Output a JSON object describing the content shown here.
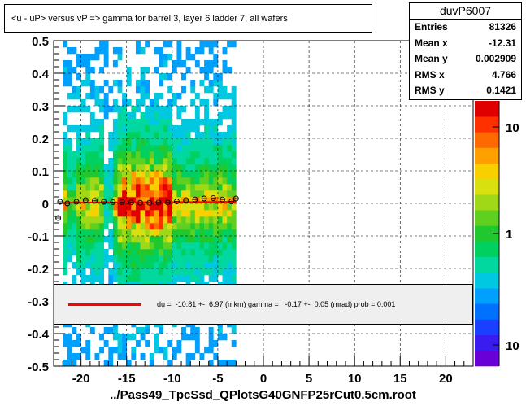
{
  "title": "<u - uP>       versus   vP =>  gamma for barrel 3, layer 6 ladder 7, all wafers",
  "x_title": "../Pass49_TpcSsd_QPlotsG40GNFP25rCut0.5cm.root",
  "stats": {
    "name": "duvP6007",
    "rows": [
      {
        "label": "Entries",
        "value": "81326"
      },
      {
        "label": "Mean x",
        "value": "-12.31"
      },
      {
        "label": "Mean y",
        "value": "0.002909"
      },
      {
        "label": "RMS x",
        "value": "4.766"
      },
      {
        "label": "RMS y",
        "value": "0.1421"
      }
    ]
  },
  "fit": {
    "text": "du =  -10.81 +-  6.97 (mkm) gamma =   -0.17 +-  0.05 (mrad) prob = 0.001",
    "line_color": "#ff0000"
  },
  "chart_data": {
    "type": "heatmap",
    "xlim": [
      -23,
      23
    ],
    "ylim": [
      -0.5,
      0.5
    ],
    "x_ticks": [
      -20,
      -15,
      -10,
      -5,
      0,
      5,
      10,
      15,
      20
    ],
    "y_ticks": [
      -0.5,
      -0.4,
      -0.3,
      -0.2,
      -0.1,
      0,
      0.1,
      0.2,
      0.3,
      0.4,
      0.5
    ],
    "x_tick_labels": [
      "-20",
      "-15",
      "-10",
      "-5",
      "0",
      "5",
      "10",
      "15",
      "20"
    ],
    "y_tick_labels": [
      "-0.5",
      "-0.4",
      "-0.3",
      "-0.2",
      "-0.1",
      "0",
      "0.1",
      "0.2",
      "0.3",
      "0.4",
      "0.5"
    ],
    "grid": true,
    "log_z": true,
    "z_tick_labels": [
      "10",
      "1",
      "10"
    ],
    "data_x_range": [
      -22,
      -3
    ],
    "profile_points": {
      "x": [
        -22.5,
        -22.3,
        -21.5,
        -20.5,
        -19.5,
        -18.5,
        -17.5,
        -16.5,
        -15.5,
        -14.5,
        -13.5,
        -12.5,
        -11.5,
        -10.5,
        -9.5,
        -8.5,
        -7.5,
        -6.5,
        -5.5,
        -4.5,
        -3.5,
        -3.0
      ],
      "y": [
        -0.045,
        0.005,
        0.0,
        0.005,
        0.01,
        0.008,
        0.005,
        0.004,
        0.004,
        0.003,
        0.002,
        0.002,
        0.003,
        0.003,
        0.006,
        0.01,
        0.012,
        0.015,
        0.016,
        0.012,
        0.006,
        0.015
      ]
    },
    "fit_line": {
      "x": [
        -22,
        -3
      ],
      "y": [
        0.002,
        0.005
      ],
      "color": "#ff0000"
    }
  }
}
